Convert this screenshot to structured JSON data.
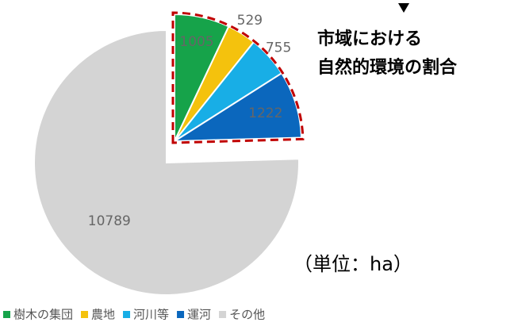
{
  "chart_data": {
    "type": "pie",
    "categories": [
      "樹木の集団",
      "農地",
      "河川等",
      "運河",
      "その他"
    ],
    "values": [
      1005,
      529,
      755,
      1222,
      10789
    ],
    "colors": [
      "#16a34a",
      "#f4c20d",
      "#18aee6",
      "#0b67bd",
      "#d4d4d4"
    ],
    "annotation": [
      "市域における",
      "自然的環境の割合"
    ],
    "unit": "（単位：ha）"
  }
}
